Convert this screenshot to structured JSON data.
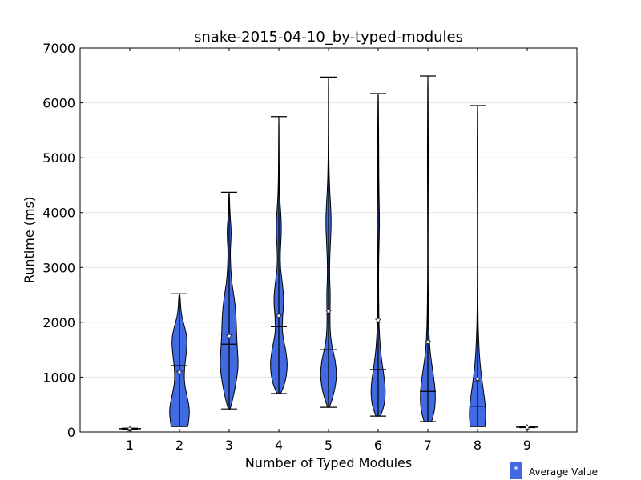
{
  "chart_data": {
    "type": "violin",
    "title": "snake-2015-04-10_by-typed-modules",
    "xlabel": "Number of Typed Modules",
    "ylabel": "Runtime (ms)",
    "ylim": [
      0,
      7000
    ],
    "yticks": [
      0,
      1000,
      2000,
      3000,
      4000,
      5000,
      6000,
      7000
    ],
    "categories": [
      "1",
      "2",
      "3",
      "4",
      "5",
      "6",
      "7",
      "8",
      "9"
    ],
    "grid": "horizontal",
    "fill_color": "#4169e1",
    "series": [
      {
        "x": 1,
        "min": 50,
        "max": 70,
        "median": 60,
        "mean": 55,
        "density": [
          [
            50,
            1
          ],
          [
            60,
            1
          ],
          [
            70,
            1
          ]
        ]
      },
      {
        "x": 2,
        "min": 100,
        "max": 2520,
        "median": 1210,
        "mean": 1090,
        "density": [
          [
            100,
            0.45
          ],
          [
            200,
            0.5
          ],
          [
            400,
            0.55
          ],
          [
            600,
            0.45
          ],
          [
            900,
            0.25
          ],
          [
            1200,
            0.28
          ],
          [
            1450,
            0.38
          ],
          [
            1700,
            0.42
          ],
          [
            1900,
            0.3
          ],
          [
            2100,
            0.12
          ],
          [
            2300,
            0.06
          ],
          [
            2520,
            0.03
          ]
        ]
      },
      {
        "x": 3,
        "min": 420,
        "max": 4370,
        "median": 1600,
        "mean": 1750,
        "density": [
          [
            420,
            0.05
          ],
          [
            600,
            0.2
          ],
          [
            900,
            0.38
          ],
          [
            1200,
            0.5
          ],
          [
            1500,
            0.45
          ],
          [
            1800,
            0.4
          ],
          [
            2100,
            0.38
          ],
          [
            2400,
            0.3
          ],
          [
            2700,
            0.15
          ],
          [
            3000,
            0.08
          ],
          [
            3300,
            0.06
          ],
          [
            3500,
            0.1
          ],
          [
            3700,
            0.11
          ],
          [
            3900,
            0.06
          ],
          [
            4200,
            0.02
          ],
          [
            4370,
            0.01
          ]
        ]
      },
      {
        "x": 4,
        "min": 700,
        "max": 5750,
        "median": 1920,
        "mean": 2120,
        "density": [
          [
            700,
            0.1
          ],
          [
            900,
            0.35
          ],
          [
            1200,
            0.48
          ],
          [
            1500,
            0.38
          ],
          [
            1800,
            0.18
          ],
          [
            2100,
            0.2
          ],
          [
            2400,
            0.28
          ],
          [
            2700,
            0.2
          ],
          [
            3000,
            0.08
          ],
          [
            3300,
            0.08
          ],
          [
            3600,
            0.14
          ],
          [
            3900,
            0.13
          ],
          [
            4200,
            0.06
          ],
          [
            4500,
            0.03
          ],
          [
            4800,
            0.02
          ],
          [
            5200,
            0.01
          ],
          [
            5750,
            0.005
          ]
        ]
      },
      {
        "x": 5,
        "min": 450,
        "max": 6470,
        "median": 1500,
        "mean": 2200,
        "density": [
          [
            450,
            0.05
          ],
          [
            700,
            0.3
          ],
          [
            1000,
            0.45
          ],
          [
            1300,
            0.38
          ],
          [
            1600,
            0.15
          ],
          [
            1900,
            0.08
          ],
          [
            2200,
            0.08
          ],
          [
            2500,
            0.1
          ],
          [
            2800,
            0.06
          ],
          [
            3100,
            0.06
          ],
          [
            3400,
            0.1
          ],
          [
            3800,
            0.15
          ],
          [
            4100,
            0.12
          ],
          [
            4500,
            0.05
          ],
          [
            5000,
            0.02
          ],
          [
            5500,
            0.01
          ],
          [
            6000,
            0.005
          ],
          [
            6470,
            0.003
          ]
        ]
      },
      {
        "x": 6,
        "min": 290,
        "max": 6170,
        "median": 1140,
        "mean": 2040,
        "density": [
          [
            290,
            0.12
          ],
          [
            500,
            0.35
          ],
          [
            800,
            0.4
          ],
          [
            1100,
            0.28
          ],
          [
            1400,
            0.15
          ],
          [
            1700,
            0.08
          ],
          [
            2000,
            0.04
          ],
          [
            2300,
            0.03
          ],
          [
            2800,
            0.02
          ],
          [
            3200,
            0.03
          ],
          [
            3600,
            0.06
          ],
          [
            3900,
            0.07
          ],
          [
            4200,
            0.05
          ],
          [
            4700,
            0.03
          ],
          [
            5200,
            0.03
          ],
          [
            5600,
            0.02
          ],
          [
            6000,
            0.01
          ],
          [
            6170,
            0.005
          ]
        ]
      },
      {
        "x": 7,
        "min": 190,
        "max": 6490,
        "median": 740,
        "mean": 1640,
        "density": [
          [
            190,
            0.2
          ],
          [
            400,
            0.38
          ],
          [
            700,
            0.42
          ],
          [
            1000,
            0.32
          ],
          [
            1300,
            0.18
          ],
          [
            1600,
            0.09
          ],
          [
            2000,
            0.04
          ],
          [
            2500,
            0.02
          ],
          [
            3000,
            0.01
          ],
          [
            3500,
            0.01
          ],
          [
            4000,
            0.015
          ],
          [
            4500,
            0.02
          ],
          [
            5000,
            0.025
          ],
          [
            5500,
            0.02
          ],
          [
            6000,
            0.01
          ],
          [
            6490,
            0.005
          ]
        ]
      },
      {
        "x": 8,
        "min": 100,
        "max": 5950,
        "median": 470,
        "mean": 970,
        "density": [
          [
            100,
            0.4
          ],
          [
            300,
            0.45
          ],
          [
            500,
            0.42
          ],
          [
            800,
            0.3
          ],
          [
            1100,
            0.18
          ],
          [
            1400,
            0.1
          ],
          [
            1700,
            0.06
          ],
          [
            2000,
            0.03
          ],
          [
            2500,
            0.015
          ],
          [
            3000,
            0.01
          ],
          [
            3500,
            0.01
          ],
          [
            4000,
            0.01
          ],
          [
            4500,
            0.015
          ],
          [
            5000,
            0.02
          ],
          [
            5500,
            0.015
          ],
          [
            5950,
            0.005
          ]
        ]
      },
      {
        "x": 9,
        "min": 80,
        "max": 100,
        "median": 90,
        "mean": 85,
        "density": [
          [
            80,
            1
          ],
          [
            90,
            1
          ],
          [
            100,
            1
          ]
        ]
      }
    ]
  },
  "legend": {
    "marker": "*",
    "label": "Average Value"
  }
}
